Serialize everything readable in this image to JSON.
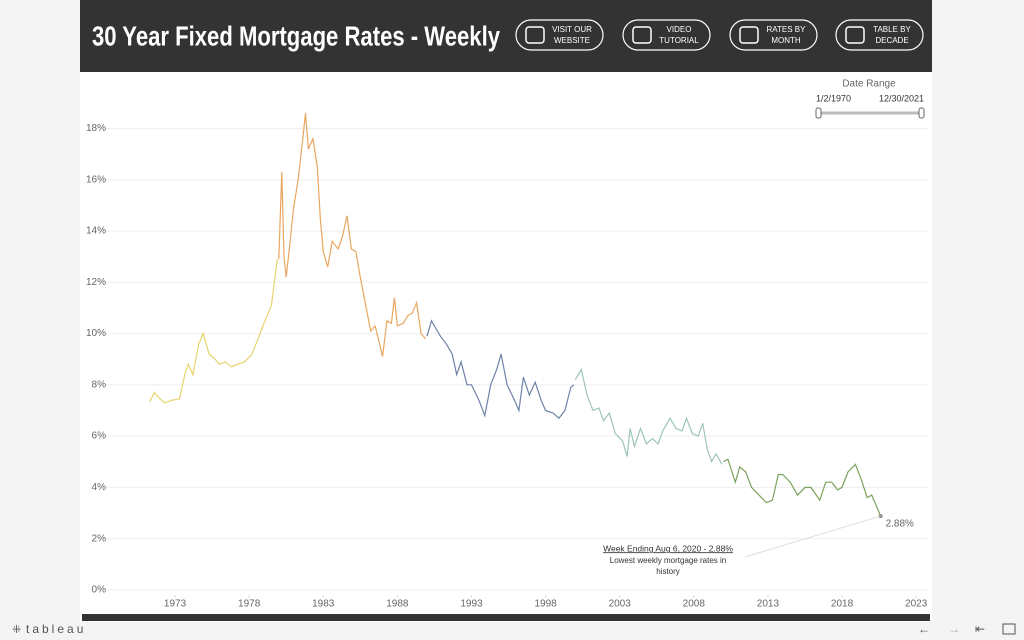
{
  "header": {
    "title": "30 Year Fixed Mortgage Rates - Weekly",
    "buttons": [
      [
        "VISIT OUR",
        "WEBSITE"
      ],
      [
        "VIDEO",
        "TUTORIAL"
      ],
      [
        "RATES BY",
        "MONTH"
      ],
      [
        "TABLE BY",
        "DECADE"
      ]
    ]
  },
  "filter": {
    "label": "Date Range",
    "start": "1/2/1970",
    "end": "12/30/2021"
  },
  "footer": {
    "brand": "tableau"
  },
  "chart_data": {
    "type": "line",
    "xlim": [
      1967.6,
      2023.8
    ],
    "ylim": [
      -0.2,
      19.7
    ],
    "xticks": [
      1973,
      1978,
      1983,
      1988,
      1993,
      1998,
      2003,
      2008,
      2013,
      2018,
      2023
    ],
    "yticks": [
      {
        "value": 0,
        "label": "0%"
      },
      {
        "value": 2,
        "label": "2%"
      },
      {
        "value": 4,
        "label": "4%"
      },
      {
        "value": 6,
        "label": "6%"
      },
      {
        "value": 8,
        "label": "8%"
      },
      {
        "value": 10,
        "label": "10%"
      },
      {
        "value": 12,
        "label": "12%"
      },
      {
        "value": 14,
        "label": "14%"
      },
      {
        "value": 16,
        "label": "16%"
      },
      {
        "value": 18,
        "label": "18%"
      }
    ],
    "grid": true,
    "annotation": {
      "title": "Week Ending Aug 6, 2020 - 2.88%",
      "lines": [
        "Lowest weekly mortgage rates in",
        "history"
      ]
    },
    "series": [
      {
        "color": "#e8d36b",
        "x": [
          1971.3,
          1971.6,
          1971.9,
          1972.3,
          1972.8,
          1973.3,
          1973.7,
          1973.9,
          1974.2,
          1974.6,
          1974.9,
          1975.3,
          1975.7,
          1976.0,
          1976.4,
          1976.8,
          1977.2,
          1977.7,
          1978.2,
          1978.6,
          1979.0,
          1979.5,
          1979.9
        ],
        "values": [
          7.33,
          7.7,
          7.5,
          7.3,
          7.4,
          7.45,
          8.5,
          8.8,
          8.4,
          9.6,
          10.0,
          9.2,
          9.0,
          8.8,
          8.9,
          8.7,
          8.8,
          8.9,
          9.2,
          9.8,
          10.4,
          11.1,
          12.9
        ]
      },
      {
        "color": "#e9a660",
        "x": [
          1980.0,
          1980.2,
          1980.35,
          1980.5,
          1980.8,
          1981.0,
          1981.3,
          1981.6,
          1981.8,
          1982.0,
          1982.3,
          1982.6,
          1982.8,
          1983.0,
          1983.3,
          1983.6,
          1984.0,
          1984.3,
          1984.6,
          1984.9,
          1985.2,
          1985.5,
          1985.9,
          1986.2,
          1986.5,
          1986.8,
          1987.0,
          1987.3,
          1987.6,
          1987.8,
          1988.0,
          1988.4,
          1988.7,
          1989.0,
          1989.3,
          1989.6,
          1989.9
        ],
        "values": [
          12.9,
          16.3,
          13.0,
          12.2,
          13.8,
          14.9,
          16.0,
          17.5,
          18.6,
          17.2,
          17.6,
          16.5,
          14.5,
          13.2,
          12.6,
          13.6,
          13.3,
          13.8,
          14.6,
          13.3,
          13.2,
          12.2,
          11.0,
          10.1,
          10.3,
          9.6,
          9.1,
          10.5,
          10.4,
          11.4,
          10.3,
          10.4,
          10.7,
          10.8,
          11.2,
          10.0,
          9.8
        ]
      },
      {
        "color": "#6f82a8",
        "x": [
          1990.0,
          1990.3,
          1990.6,
          1990.9,
          1991.3,
          1991.7,
          1992.0,
          1992.3,
          1992.7,
          1993.0,
          1993.5,
          1993.9,
          1994.3,
          1994.7,
          1995.0,
          1995.4,
          1995.9,
          1996.2,
          1996.5,
          1996.9,
          1997.3,
          1997.7,
          1998.0,
          1998.5,
          1998.9,
          1999.3,
          1999.7,
          1999.9
        ],
        "values": [
          9.9,
          10.5,
          10.2,
          9.9,
          9.6,
          9.2,
          8.4,
          8.9,
          8.0,
          8.0,
          7.4,
          6.8,
          8.0,
          8.6,
          9.2,
          8.0,
          7.4,
          7.0,
          8.3,
          7.6,
          8.1,
          7.4,
          7.0,
          6.9,
          6.7,
          7.0,
          7.9,
          8.0
        ]
      },
      {
        "color": "#9dc4b9",
        "x": [
          2000.0,
          2000.4,
          2000.8,
          2001.2,
          2001.6,
          2001.9,
          2002.3,
          2002.7,
          2003.2,
          2003.5,
          2003.7,
          2004.0,
          2004.4,
          2004.8,
          2005.2,
          2005.6,
          2005.9,
          2006.4,
          2006.8,
          2007.2,
          2007.5,
          2007.9,
          2008.3,
          2008.6,
          2008.9,
          2009.2,
          2009.5,
          2009.9
        ],
        "values": [
          8.2,
          8.6,
          7.6,
          7.0,
          7.1,
          6.6,
          6.9,
          6.1,
          5.8,
          5.2,
          6.3,
          5.6,
          6.3,
          5.7,
          5.9,
          5.7,
          6.2,
          6.7,
          6.3,
          6.2,
          6.7,
          6.1,
          6.0,
          6.5,
          5.5,
          5.0,
          5.3,
          4.9
        ]
      },
      {
        "color": "#7ba35c",
        "x": [
          2010.0,
          2010.3,
          2010.8,
          2011.1,
          2011.5,
          2011.9,
          2012.4,
          2012.9,
          2013.3,
          2013.7,
          2014.0,
          2014.5,
          2015.0,
          2015.5,
          2015.9,
          2016.5,
          2016.9,
          2017.3,
          2017.7,
          2018.0,
          2018.4,
          2018.9,
          2019.3,
          2019.7,
          2020.0,
          2020.3,
          2020.6
        ],
        "values": [
          5.0,
          5.1,
          4.2,
          4.8,
          4.6,
          4.0,
          3.7,
          3.4,
          3.5,
          4.5,
          4.5,
          4.2,
          3.7,
          4.0,
          4.0,
          3.5,
          4.2,
          4.2,
          3.9,
          4.0,
          4.6,
          4.9,
          4.3,
          3.6,
          3.7,
          3.3,
          2.88
        ],
        "value_labels": [
          null,
          null,
          null,
          null,
          null,
          null,
          null,
          null,
          null,
          null,
          null,
          null,
          null,
          null,
          null,
          null,
          null,
          null,
          null,
          null,
          null,
          null,
          null,
          null,
          null,
          null,
          "2.88%"
        ]
      }
    ]
  }
}
